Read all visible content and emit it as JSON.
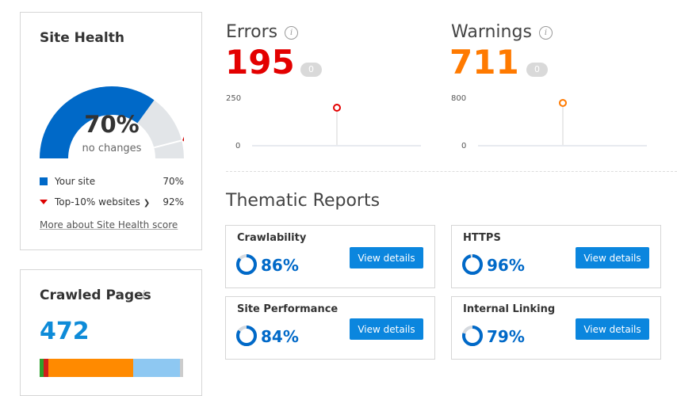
{
  "site_health": {
    "title": "Site Health",
    "percent": "70%",
    "percent_value": 70,
    "subtitle": "no changes",
    "legend": [
      {
        "label": "Your site",
        "value": "70%"
      },
      {
        "label": "Top-10% websites",
        "value": "92%"
      }
    ],
    "top10_value": 92,
    "more_link": "More about Site Health score",
    "colors": {
      "your_site": "#0069c8",
      "remaining": "#e2e5e8",
      "top10_marker": "#d00000"
    }
  },
  "crawled_pages": {
    "title": "Crawled Pages",
    "info_icon": "info-icon",
    "count": "472",
    "breakdown": [
      {
        "color": "#2da12d",
        "fraction": 0.03
      },
      {
        "color": "#d0201a",
        "fraction": 0.03
      },
      {
        "color": "#ff8a00",
        "fraction": 0.59
      },
      {
        "color": "#8ec8f2",
        "fraction": 0.33
      },
      {
        "color": "#cccccc",
        "fraction": 0.02
      }
    ]
  },
  "errors": {
    "title": "Errors",
    "count": "195",
    "badge": "0",
    "y_max": "250",
    "y_min": "0",
    "color": "#e30000"
  },
  "warnings": {
    "title": "Warnings",
    "count": "711",
    "badge": "0",
    "y_max": "800",
    "y_min": "0",
    "color": "#ff7a00"
  },
  "thematic": {
    "title": "Thematic Reports",
    "reports": [
      {
        "name": "Crawlability",
        "score": "86%",
        "value": 86,
        "button": "View details"
      },
      {
        "name": "HTTPS",
        "score": "96%",
        "value": 96,
        "button": "View details"
      },
      {
        "name": "Site Performance",
        "score": "84%",
        "value": 84,
        "button": "View details"
      },
      {
        "name": "Internal Linking",
        "score": "79%",
        "value": 79,
        "button": "View details"
      }
    ]
  }
}
